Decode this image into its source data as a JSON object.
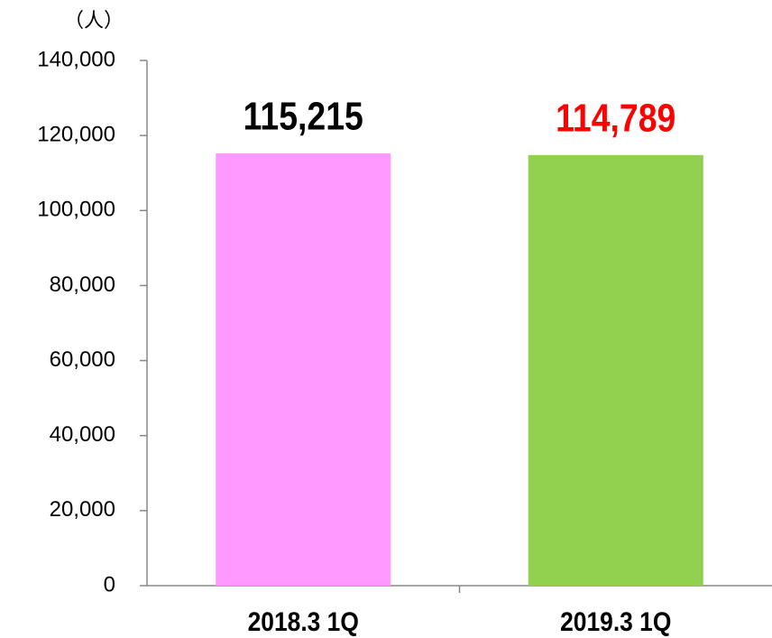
{
  "chart_data": {
    "type": "bar",
    "y_unit_label": "（人）",
    "categories": [
      "2018.3 1Q",
      "2019.3 1Q"
    ],
    "values": [
      115215,
      114789
    ],
    "value_labels": [
      "115,215",
      "114,789"
    ],
    "colors": [
      "#ff99ff",
      "#92d050"
    ],
    "value_label_colors": [
      "#000000",
      "#ff0000"
    ],
    "ylim": [
      0,
      140000
    ],
    "yticks": [
      0,
      {
        "value": 20000,
        "label": "20,000"
      },
      {
        "value": 40000,
        "label": "40,000"
      },
      {
        "value": 60000,
        "label": "60,000"
      },
      {
        "value": 80000,
        "label": "80,000"
      },
      {
        "value": 100000,
        "label": "100,000"
      },
      {
        "value": 120000,
        "label": "120,000"
      },
      {
        "value": 140000,
        "label": "140,000"
      }
    ],
    "grid": false
  }
}
